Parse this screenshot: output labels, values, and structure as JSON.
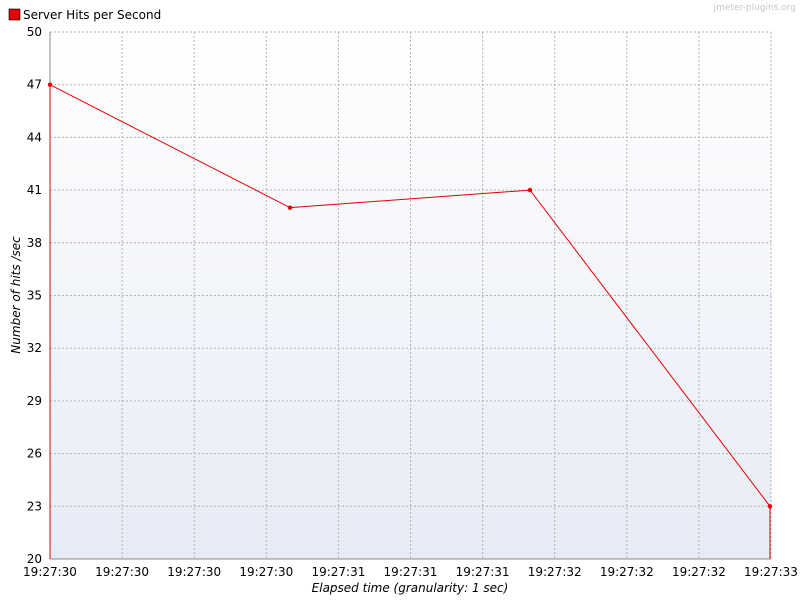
{
  "watermark": "jmeter-plugins.org",
  "chart_data": {
    "type": "line",
    "title": "",
    "xlabel": "Elapsed time (granularity: 1 sec)",
    "ylabel": "Number of hits /sec",
    "ylim": [
      20,
      50
    ],
    "yticks": [
      20,
      23,
      26,
      29,
      32,
      35,
      38,
      41,
      44,
      47,
      50
    ],
    "xticks": [
      "19:27:30",
      "19:27:30",
      "19:27:30",
      "19:27:30",
      "19:27:31",
      "19:27:31",
      "19:27:31",
      "19:27:32",
      "19:27:32",
      "19:27:32",
      "19:27:33"
    ],
    "grid": true,
    "legend_position": "top-left",
    "series": [
      {
        "name": "Server Hits per Second",
        "color": "#e60000",
        "x": [
          0,
          1,
          2,
          3
        ],
        "y": [
          47,
          40,
          41,
          23
        ]
      }
    ]
  }
}
